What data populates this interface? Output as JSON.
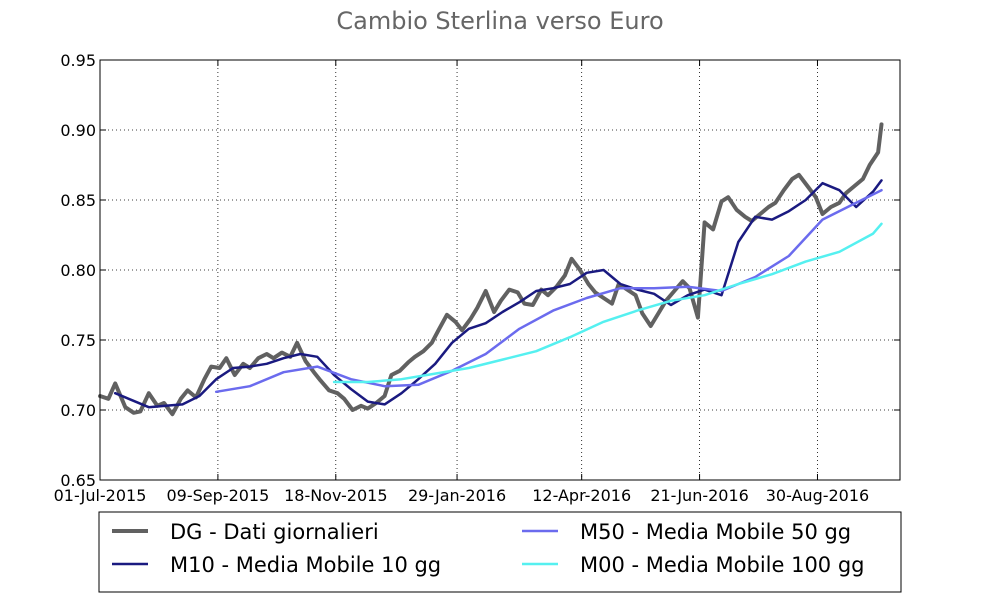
{
  "chart_data": {
    "type": "line",
    "title": "Cambio Sterlina verso Euro",
    "xlabel": "",
    "ylabel": "",
    "xlim": [
      "2015-07-01",
      "2016-10-18"
    ],
    "ylim": [
      0.65,
      0.95
    ],
    "grid": true,
    "legend_position": "bottom",
    "x_ticks": [
      "01-Jul-2015",
      "09-Sep-2015",
      "18-Nov-2015",
      "29-Jan-2016",
      "12-Apr-2016",
      "21-Jun-2016",
      "30-Aug-2016"
    ],
    "y_ticks": [
      "0.65",
      "0.70",
      "0.75",
      "0.80",
      "0.85",
      "0.90",
      "0.95"
    ],
    "series": [
      {
        "name": "DG - Dati giornalieri",
        "color": "#616161",
        "x": [
          "2015-07-01",
          "2015-07-06",
          "2015-07-10",
          "2015-07-16",
          "2015-07-21",
          "2015-07-25",
          "2015-07-30",
          "2015-08-04",
          "2015-08-08",
          "2015-08-13",
          "2015-08-18",
          "2015-08-22",
          "2015-08-27",
          "2015-09-01",
          "2015-09-05",
          "2015-09-10",
          "2015-09-14",
          "2015-09-19",
          "2015-09-24",
          "2015-09-28",
          "2015-10-03",
          "2015-10-08",
          "2015-10-12",
          "2015-10-17",
          "2015-10-22",
          "2015-10-26",
          "2015-10-31",
          "2015-11-05",
          "2015-11-09",
          "2015-11-14",
          "2015-11-19",
          "2015-11-23",
          "2015-11-28",
          "2015-12-03",
          "2015-12-07",
          "2015-12-12",
          "2015-12-17",
          "2015-12-21",
          "2015-12-26",
          "2015-12-31",
          "2016-01-04",
          "2016-01-09",
          "2016-01-14",
          "2016-01-18",
          "2016-01-23",
          "2016-01-28",
          "2016-02-01",
          "2016-02-06",
          "2016-02-10",
          "2016-02-15",
          "2016-02-20",
          "2016-02-24",
          "2016-02-29",
          "2016-03-05",
          "2016-03-09",
          "2016-03-14",
          "2016-03-19",
          "2016-03-23",
          "2016-03-28",
          "2016-04-02",
          "2016-04-06",
          "2016-04-11",
          "2016-04-16",
          "2016-04-20",
          "2016-04-25",
          "2016-04-30",
          "2016-05-04",
          "2016-05-09",
          "2016-05-14",
          "2016-05-18",
          "2016-05-23",
          "2016-05-28",
          "2016-06-01",
          "2016-06-06",
          "2016-06-11",
          "2016-06-15",
          "2016-06-20",
          "2016-06-24",
          "2016-06-29",
          "2016-07-04",
          "2016-07-08",
          "2016-07-13",
          "2016-07-18",
          "2016-07-22",
          "2016-07-27",
          "2016-08-01",
          "2016-08-05",
          "2016-08-10",
          "2016-08-15",
          "2016-08-19",
          "2016-08-24",
          "2016-08-29",
          "2016-09-02",
          "2016-09-07",
          "2016-09-12",
          "2016-09-16",
          "2016-09-21",
          "2016-09-26",
          "2016-09-30",
          "2016-10-05",
          "2016-10-07"
        ],
        "values": [
          0.71,
          0.708,
          0.719,
          0.702,
          0.698,
          0.699,
          0.712,
          0.703,
          0.705,
          0.697,
          0.708,
          0.714,
          0.709,
          0.722,
          0.731,
          0.73,
          0.737,
          0.725,
          0.733,
          0.73,
          0.737,
          0.74,
          0.737,
          0.741,
          0.738,
          0.748,
          0.735,
          0.727,
          0.721,
          0.714,
          0.712,
          0.708,
          0.7,
          0.703,
          0.701,
          0.705,
          0.71,
          0.725,
          0.728,
          0.734,
          0.738,
          0.742,
          0.748,
          0.757,
          0.768,
          0.763,
          0.757,
          0.765,
          0.773,
          0.785,
          0.77,
          0.778,
          0.786,
          0.784,
          0.776,
          0.775,
          0.786,
          0.782,
          0.788,
          0.796,
          0.808,
          0.8,
          0.79,
          0.784,
          0.78,
          0.776,
          0.79,
          0.786,
          0.782,
          0.769,
          0.76,
          0.77,
          0.778,
          0.785,
          0.792,
          0.787,
          0.766,
          0.834,
          0.829,
          0.849,
          0.852,
          0.843,
          0.838,
          0.835,
          0.84,
          0.845,
          0.848,
          0.857,
          0.865,
          0.868,
          0.86,
          0.852,
          0.84,
          0.845,
          0.848,
          0.855,
          0.86,
          0.865,
          0.875,
          0.884,
          0.904
        ]
      },
      {
        "name": "M10 - Media Mobile 10 gg",
        "color": "#1a1a80",
        "x": [
          "2015-07-10",
          "2015-07-20",
          "2015-07-30",
          "2015-08-09",
          "2015-08-19",
          "2015-08-29",
          "2015-09-08",
          "2015-09-18",
          "2015-09-28",
          "2015-10-08",
          "2015-10-18",
          "2015-10-28",
          "2015-11-07",
          "2015-11-17",
          "2015-11-27",
          "2015-12-07",
          "2015-12-17",
          "2015-12-27",
          "2016-01-06",
          "2016-01-16",
          "2016-01-26",
          "2016-02-05",
          "2016-02-15",
          "2016-02-25",
          "2016-03-06",
          "2016-03-16",
          "2016-03-26",
          "2016-04-05",
          "2016-04-15",
          "2016-04-25",
          "2016-05-05",
          "2016-05-15",
          "2016-05-25",
          "2016-06-04",
          "2016-06-14",
          "2016-06-24",
          "2016-07-04",
          "2016-07-14",
          "2016-07-24",
          "2016-08-03",
          "2016-08-13",
          "2016-08-23",
          "2016-09-02",
          "2016-09-12",
          "2016-09-22",
          "2016-10-02",
          "2016-10-07"
        ],
        "values": [
          0.712,
          0.707,
          0.702,
          0.703,
          0.704,
          0.71,
          0.722,
          0.73,
          0.731,
          0.733,
          0.737,
          0.74,
          0.738,
          0.725,
          0.715,
          0.706,
          0.704,
          0.712,
          0.722,
          0.733,
          0.748,
          0.758,
          0.762,
          0.77,
          0.777,
          0.785,
          0.787,
          0.79,
          0.798,
          0.8,
          0.79,
          0.786,
          0.783,
          0.775,
          0.782,
          0.786,
          0.782,
          0.82,
          0.838,
          0.836,
          0.842,
          0.85,
          0.862,
          0.857,
          0.845,
          0.856,
          0.864
        ]
      },
      {
        "name": "M50 - Media Mobile 50 gg",
        "color": "#6b6bee",
        "x": [
          "2015-09-08",
          "2015-09-28",
          "2015-10-18",
          "2015-11-07",
          "2015-11-27",
          "2015-12-17",
          "2016-01-06",
          "2016-01-26",
          "2016-02-15",
          "2016-03-06",
          "2016-03-26",
          "2016-04-15",
          "2016-05-05",
          "2016-05-25",
          "2016-06-14",
          "2016-07-04",
          "2016-07-24",
          "2016-08-13",
          "2016-09-02",
          "2016-09-22",
          "2016-10-07"
        ],
        "values": [
          0.713,
          0.717,
          0.727,
          0.731,
          0.722,
          0.717,
          0.718,
          0.728,
          0.74,
          0.758,
          0.771,
          0.78,
          0.787,
          0.787,
          0.788,
          0.785,
          0.795,
          0.81,
          0.836,
          0.848,
          0.857
        ]
      },
      {
        "name": "M00 - Media Mobile 100 gg",
        "color": "#55f0f0",
        "x": [
          "2015-11-17",
          "2015-12-07",
          "2015-12-27",
          "2016-01-16",
          "2016-02-05",
          "2016-02-25",
          "2016-03-16",
          "2016-04-05",
          "2016-04-25",
          "2016-05-15",
          "2016-06-04",
          "2016-06-24",
          "2016-07-14",
          "2016-08-03",
          "2016-08-23",
          "2016-09-12",
          "2016-10-02",
          "2016-10-07"
        ],
        "values": [
          0.72,
          0.72,
          0.722,
          0.726,
          0.73,
          0.736,
          0.742,
          0.752,
          0.763,
          0.771,
          0.778,
          0.782,
          0.79,
          0.797,
          0.806,
          0.813,
          0.826,
          0.833
        ]
      }
    ]
  }
}
